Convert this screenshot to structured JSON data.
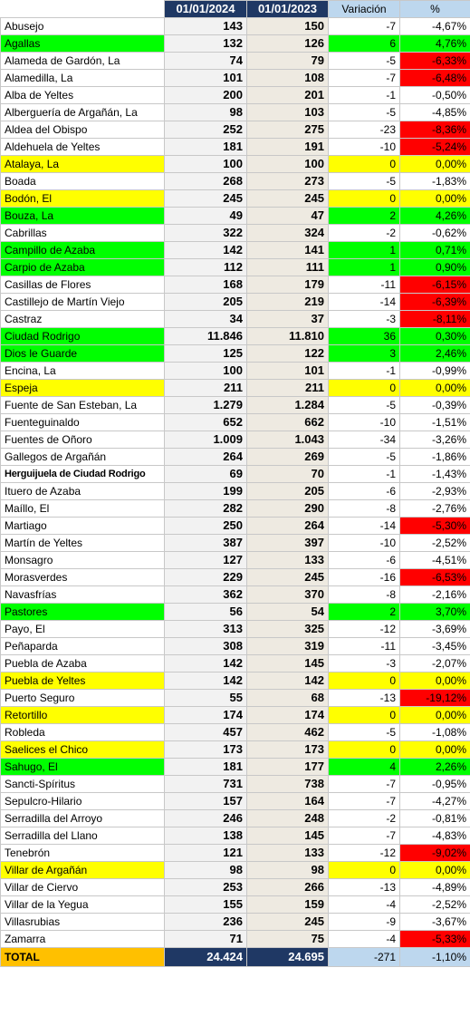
{
  "header": {
    "col_2024": "01/01/2024",
    "col_2023": "01/01/2023",
    "col_variation": "Variación",
    "col_percent": "%"
  },
  "colors": {
    "increase": "#00ff00",
    "no_change": "#ffff00",
    "large_decrease": "#ff0000",
    "header_dark": "#1f3864",
    "header_light": "#bdd7ee",
    "total_label": "#ffc000"
  },
  "rows": [
    {
      "name": "Abusejo",
      "y2024": "143",
      "y2023": "150",
      "var": "-7",
      "pct": "-4,67%",
      "hl": "",
      "red": false
    },
    {
      "name": "Agallas",
      "y2024": "132",
      "y2023": "126",
      "var": "6",
      "pct": "4,76%",
      "hl": "green",
      "red": false
    },
    {
      "name": "Alameda de Gardón, La",
      "y2024": "74",
      "y2023": "79",
      "var": "-5",
      "pct": "-6,33%",
      "hl": "",
      "red": true
    },
    {
      "name": "Alamedilla, La",
      "y2024": "101",
      "y2023": "108",
      "var": "-7",
      "pct": "-6,48%",
      "hl": "",
      "red": true
    },
    {
      "name": "Alba de Yeltes",
      "y2024": "200",
      "y2023": "201",
      "var": "-1",
      "pct": "-0,50%",
      "hl": "",
      "red": false
    },
    {
      "name": "Alberguería de Argañán, La",
      "y2024": "98",
      "y2023": "103",
      "var": "-5",
      "pct": "-4,85%",
      "hl": "",
      "red": false
    },
    {
      "name": "Aldea del Obispo",
      "y2024": "252",
      "y2023": "275",
      "var": "-23",
      "pct": "-8,36%",
      "hl": "",
      "red": true
    },
    {
      "name": "Aldehuela de Yeltes",
      "y2024": "181",
      "y2023": "191",
      "var": "-10",
      "pct": "-5,24%",
      "hl": "",
      "red": true
    },
    {
      "name": "Atalaya, La",
      "y2024": "100",
      "y2023": "100",
      "var": "0",
      "pct": "0,00%",
      "hl": "yellow",
      "red": false
    },
    {
      "name": "Boada",
      "y2024": "268",
      "y2023": "273",
      "var": "-5",
      "pct": "-1,83%",
      "hl": "",
      "red": false
    },
    {
      "name": "Bodón, El",
      "y2024": "245",
      "y2023": "245",
      "var": "0",
      "pct": "0,00%",
      "hl": "yellow",
      "red": false
    },
    {
      "name": "Bouza, La",
      "y2024": "49",
      "y2023": "47",
      "var": "2",
      "pct": "4,26%",
      "hl": "green",
      "red": false
    },
    {
      "name": "Cabrillas",
      "y2024": "322",
      "y2023": "324",
      "var": "-2",
      "pct": "-0,62%",
      "hl": "",
      "red": false
    },
    {
      "name": "Campillo de Azaba",
      "y2024": "142",
      "y2023": "141",
      "var": "1",
      "pct": "0,71%",
      "hl": "green",
      "red": false
    },
    {
      "name": "Carpio de Azaba",
      "y2024": "112",
      "y2023": "111",
      "var": "1",
      "pct": "0,90%",
      "hl": "green",
      "red": false
    },
    {
      "name": "Casillas de Flores",
      "y2024": "168",
      "y2023": "179",
      "var": "-11",
      "pct": "-6,15%",
      "hl": "",
      "red": true
    },
    {
      "name": "Castillejo de Martín Viejo",
      "y2024": "205",
      "y2023": "219",
      "var": "-14",
      "pct": "-6,39%",
      "hl": "",
      "red": true
    },
    {
      "name": "Castraz",
      "y2024": "34",
      "y2023": "37",
      "var": "-3",
      "pct": "-8,11%",
      "hl": "",
      "red": true
    },
    {
      "name": "Ciudad Rodrigo",
      "y2024": "11.846",
      "y2023": "11.810",
      "var": "36",
      "pct": "0,30%",
      "hl": "green",
      "red": false
    },
    {
      "name": "Dios le Guarde",
      "y2024": "125",
      "y2023": "122",
      "var": "3",
      "pct": "2,46%",
      "hl": "green",
      "red": false
    },
    {
      "name": "Encina, La",
      "y2024": "100",
      "y2023": "101",
      "var": "-1",
      "pct": "-0,99%",
      "hl": "",
      "red": false
    },
    {
      "name": "Espeja",
      "y2024": "211",
      "y2023": "211",
      "var": "0",
      "pct": "0,00%",
      "hl": "yellow",
      "red": false
    },
    {
      "name": "Fuente de San Esteban, La",
      "y2024": "1.279",
      "y2023": "1.284",
      "var": "-5",
      "pct": "-0,39%",
      "hl": "",
      "red": false
    },
    {
      "name": "Fuenteguinaldo",
      "y2024": "652",
      "y2023": "662",
      "var": "-10",
      "pct": "-1,51%",
      "hl": "",
      "red": false
    },
    {
      "name": "Fuentes de Oñoro",
      "y2024": "1.009",
      "y2023": "1.043",
      "var": "-34",
      "pct": "-3,26%",
      "hl": "",
      "red": false
    },
    {
      "name": "Gallegos de Argañán",
      "y2024": "264",
      "y2023": "269",
      "var": "-5",
      "pct": "-1,86%",
      "hl": "",
      "red": false
    },
    {
      "name": "Herguijuela de Ciudad Rodrigo",
      "y2024": "69",
      "y2023": "70",
      "var": "-1",
      "pct": "-1,43%",
      "hl": "",
      "red": false,
      "condensed": true
    },
    {
      "name": "Ituero de Azaba",
      "y2024": "199",
      "y2023": "205",
      "var": "-6",
      "pct": "-2,93%",
      "hl": "",
      "red": false
    },
    {
      "name": "Maíllo, El",
      "y2024": "282",
      "y2023": "290",
      "var": "-8",
      "pct": "-2,76%",
      "hl": "",
      "red": false
    },
    {
      "name": "Martiago",
      "y2024": "250",
      "y2023": "264",
      "var": "-14",
      "pct": "-5,30%",
      "hl": "",
      "red": true
    },
    {
      "name": "Martín de Yeltes",
      "y2024": "387",
      "y2023": "397",
      "var": "-10",
      "pct": "-2,52%",
      "hl": "",
      "red": false
    },
    {
      "name": "Monsagro",
      "y2024": "127",
      "y2023": "133",
      "var": "-6",
      "pct": "-4,51%",
      "hl": "",
      "red": false
    },
    {
      "name": "Morasverdes",
      "y2024": "229",
      "y2023": "245",
      "var": "-16",
      "pct": "-6,53%",
      "hl": "",
      "red": true
    },
    {
      "name": "Navasfrías",
      "y2024": "362",
      "y2023": "370",
      "var": "-8",
      "pct": "-2,16%",
      "hl": "",
      "red": false
    },
    {
      "name": "Pastores",
      "y2024": "56",
      "y2023": "54",
      "var": "2",
      "pct": "3,70%",
      "hl": "green",
      "red": false
    },
    {
      "name": "Payo, El",
      "y2024": "313",
      "y2023": "325",
      "var": "-12",
      "pct": "-3,69%",
      "hl": "",
      "red": false
    },
    {
      "name": "Peñaparda",
      "y2024": "308",
      "y2023": "319",
      "var": "-11",
      "pct": "-3,45%",
      "hl": "",
      "red": false
    },
    {
      "name": "Puebla de Azaba",
      "y2024": "142",
      "y2023": "145",
      "var": "-3",
      "pct": "-2,07%",
      "hl": "",
      "red": false
    },
    {
      "name": "Puebla de Yeltes",
      "y2024": "142",
      "y2023": "142",
      "var": "0",
      "pct": "0,00%",
      "hl": "yellow",
      "red": false
    },
    {
      "name": "Puerto Seguro",
      "y2024": "55",
      "y2023": "68",
      "var": "-13",
      "pct": "-19,12%",
      "hl": "",
      "red": true
    },
    {
      "name": "Retortillo",
      "y2024": "174",
      "y2023": "174",
      "var": "0",
      "pct": "0,00%",
      "hl": "yellow",
      "red": false
    },
    {
      "name": "Robleda",
      "y2024": "457",
      "y2023": "462",
      "var": "-5",
      "pct": "-1,08%",
      "hl": "",
      "red": false
    },
    {
      "name": "Saelices el Chico",
      "y2024": "173",
      "y2023": "173",
      "var": "0",
      "pct": "0,00%",
      "hl": "yellow",
      "red": false
    },
    {
      "name": "Sahugo, El",
      "y2024": "181",
      "y2023": "177",
      "var": "4",
      "pct": "2,26%",
      "hl": "green",
      "red": false
    },
    {
      "name": "Sancti-Spíritus",
      "y2024": "731",
      "y2023": "738",
      "var": "-7",
      "pct": "-0,95%",
      "hl": "",
      "red": false
    },
    {
      "name": "Sepulcro-Hilario",
      "y2024": "157",
      "y2023": "164",
      "var": "-7",
      "pct": "-4,27%",
      "hl": "",
      "red": false
    },
    {
      "name": "Serradilla del Arroyo",
      "y2024": "246",
      "y2023": "248",
      "var": "-2",
      "pct": "-0,81%",
      "hl": "",
      "red": false
    },
    {
      "name": "Serradilla del Llano",
      "y2024": "138",
      "y2023": "145",
      "var": "-7",
      "pct": "-4,83%",
      "hl": "",
      "red": false
    },
    {
      "name": "Tenebrón",
      "y2024": "121",
      "y2023": "133",
      "var": "-12",
      "pct": "-9,02%",
      "hl": "",
      "red": true
    },
    {
      "name": "Villar de Argañán",
      "y2024": "98",
      "y2023": "98",
      "var": "0",
      "pct": "0,00%",
      "hl": "yellow",
      "red": false
    },
    {
      "name": "Villar de Ciervo",
      "y2024": "253",
      "y2023": "266",
      "var": "-13",
      "pct": "-4,89%",
      "hl": "",
      "red": false
    },
    {
      "name": "Villar de la Yegua",
      "y2024": "155",
      "y2023": "159",
      "var": "-4",
      "pct": "-2,52%",
      "hl": "",
      "red": false
    },
    {
      "name": "Villasrubias",
      "y2024": "236",
      "y2023": "245",
      "var": "-9",
      "pct": "-3,67%",
      "hl": "",
      "red": false
    },
    {
      "name": "Zamarra",
      "y2024": "71",
      "y2023": "75",
      "var": "-4",
      "pct": "-5,33%",
      "hl": "",
      "red": true
    }
  ],
  "total": {
    "name": "TOTAL",
    "y2024": "24.424",
    "y2023": "24.695",
    "var": "-271",
    "pct": "-1,10%"
  }
}
